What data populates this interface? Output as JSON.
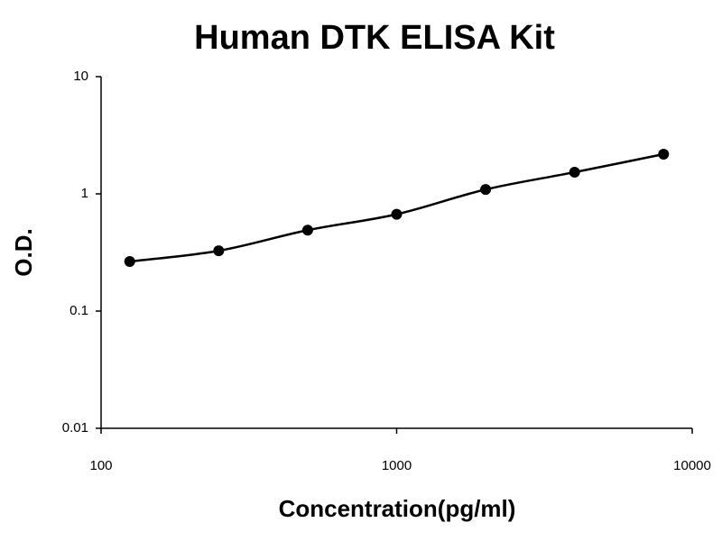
{
  "chart_data": {
    "type": "scatter",
    "title": "Human DTK ELISA Kit",
    "x_label": "Concentration(pg/ml)",
    "y_label": "O.D.",
    "x_scale": "log",
    "y_scale": "log",
    "xlim": [
      100,
      10000
    ],
    "ylim": [
      0.01,
      10
    ],
    "xticks": [
      100,
      1000,
      10000
    ],
    "yticks": [
      0.01,
      0.1,
      1,
      10
    ],
    "grid": false,
    "series": [
      {
        "color": "#000000",
        "x": [
          125,
          250,
          500,
          1000,
          2000,
          4000,
          8000
        ],
        "values": [
          0.265,
          0.327,
          0.49,
          0.67,
          1.09,
          1.53,
          2.18
        ]
      }
    ]
  }
}
